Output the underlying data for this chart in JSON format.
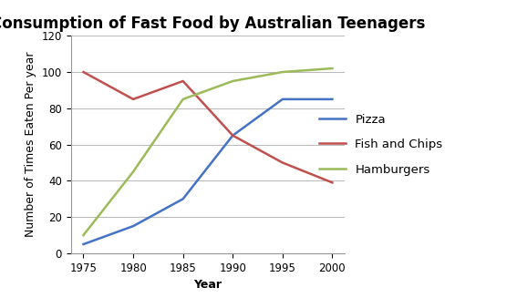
{
  "title": "Consumption of Fast Food by Australian Teenagers",
  "xlabel": "Year",
  "ylabel": "Number of Times Eaten Per year",
  "years": [
    1975,
    1980,
    1985,
    1990,
    1995,
    2000
  ],
  "pizza": [
    5,
    15,
    30,
    65,
    85,
    85
  ],
  "fish_and_chips": [
    100,
    85,
    95,
    65,
    50,
    39
  ],
  "hamburgers": [
    10,
    45,
    85,
    95,
    100,
    102
  ],
  "pizza_color": "#4472C4",
  "fish_color": "#C0504D",
  "hamburgers_color": "#9BBB59",
  "ylim": [
    0,
    120
  ],
  "yticks": [
    0,
    20,
    40,
    60,
    80,
    100,
    120
  ],
  "xticks": [
    1975,
    1980,
    1985,
    1990,
    1995,
    2000
  ],
  "legend_labels": [
    "Pizza",
    "Fish and Chips",
    "Hamburgers"
  ],
  "title_fontsize": 12,
  "axis_label_fontsize": 9,
  "tick_fontsize": 8.5,
  "legend_fontsize": 9.5,
  "line_width": 1.8,
  "background_color": "#FFFFFF",
  "grid_color": "#BBBBBB"
}
